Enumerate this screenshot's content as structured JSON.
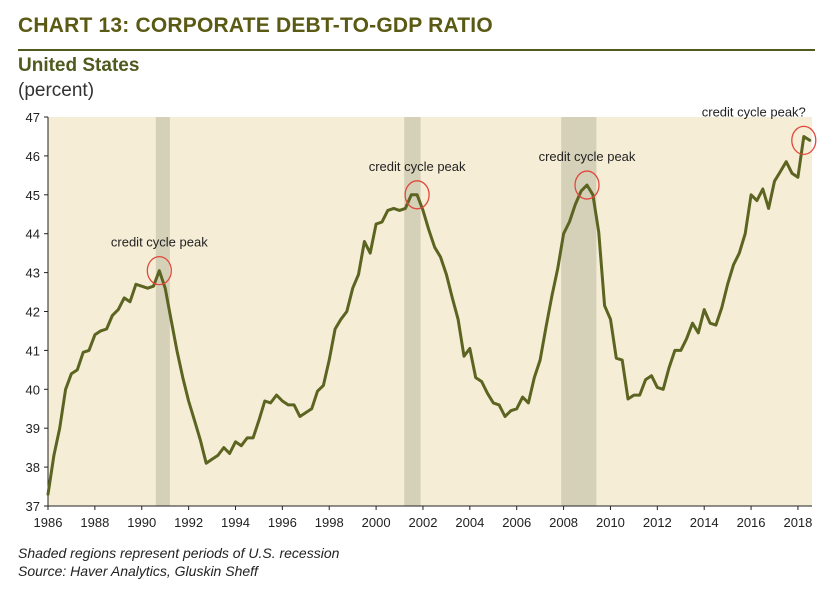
{
  "header": {
    "title": "CHART 13: CORPORATE DEBT-TO-GDP RATIO",
    "subtitle": "United States",
    "units": "(percent)"
  },
  "footnotes": [
    "Shaded regions represent periods of U.S. recession",
    "Source: Haver Analytics, Gluskin Sheff"
  ],
  "colors": {
    "line": "#5b6420",
    "plot_background": "#f6edd6",
    "recession_shade": "#d5d0b8",
    "circle": "#e0483c",
    "title": "#5a5a14"
  },
  "chart_data": {
    "type": "line",
    "xlim": [
      1986,
      2018.6
    ],
    "ylim": [
      37,
      47
    ],
    "x_ticks": [
      1986,
      1988,
      1990,
      1992,
      1994,
      1996,
      1998,
      2000,
      2002,
      2004,
      2006,
      2008,
      2010,
      2012,
      2014,
      2016,
      2018
    ],
    "y_ticks": [
      37,
      38,
      39,
      40,
      41,
      42,
      43,
      44,
      45,
      46,
      47
    ],
    "grid": false,
    "recessions": [
      [
        1990.6,
        1991.2
      ],
      [
        2001.2,
        2001.9
      ],
      [
        2007.9,
        2009.4
      ]
    ],
    "annotations": [
      {
        "text": "credit cycle peak",
        "x": 1990.75,
        "y": 43.05
      },
      {
        "text": "credit cycle peak",
        "x": 2001.75,
        "y": 45.0
      },
      {
        "text": "credit cycle peak",
        "x": 2009.0,
        "y": 45.25
      },
      {
        "text": "credit cycle peak?",
        "x": 2018.25,
        "y": 46.4
      }
    ],
    "series": [
      {
        "x": [
          1986.0,
          1986.25,
          1986.5,
          1986.75,
          1987.0,
          1987.25,
          1987.5,
          1987.75,
          1988.0,
          1988.25,
          1988.5,
          1988.75,
          1989.0,
          1989.25,
          1989.5,
          1989.75,
          1990.0,
          1990.25,
          1990.5,
          1990.75,
          1991.0,
          1991.25,
          1991.5,
          1991.75,
          1992.0,
          1992.25,
          1992.5,
          1992.75,
          1993.0,
          1993.25,
          1993.5,
          1993.75,
          1994.0,
          1994.25,
          1994.5,
          1994.75,
          1995.0,
          1995.25,
          1995.5,
          1995.75,
          1996.0,
          1996.25,
          1996.5,
          1996.75,
          1997.0,
          1997.25,
          1997.5,
          1997.75,
          1998.0,
          1998.25,
          1998.5,
          1998.75,
          1999.0,
          1999.25,
          1999.5,
          1999.75,
          2000.0,
          2000.25,
          2000.5,
          2000.75,
          2001.0,
          2001.25,
          2001.5,
          2001.75,
          2002.0,
          2002.25,
          2002.5,
          2002.75,
          2003.0,
          2003.25,
          2003.5,
          2003.75,
          2004.0,
          2004.25,
          2004.5,
          2004.75,
          2005.0,
          2005.25,
          2005.5,
          2005.75,
          2006.0,
          2006.25,
          2006.5,
          2006.75,
          2007.0,
          2007.25,
          2007.5,
          2007.75,
          2008.0,
          2008.25,
          2008.5,
          2008.75,
          2009.0,
          2009.25,
          2009.5,
          2009.75,
          2010.0,
          2010.25,
          2010.5,
          2010.75,
          2011.0,
          2011.25,
          2011.5,
          2011.75,
          2012.0,
          2012.25,
          2012.5,
          2012.75,
          2013.0,
          2013.25,
          2013.5,
          2013.75,
          2014.0,
          2014.25,
          2014.5,
          2014.75,
          2015.0,
          2015.25,
          2015.5,
          2015.75,
          2016.0,
          2016.25,
          2016.5,
          2016.75,
          2017.0,
          2017.25,
          2017.5,
          2017.75,
          2018.0,
          2018.25,
          2018.5
        ],
        "y": [
          37.3,
          38.3,
          39.0,
          40.0,
          40.4,
          40.5,
          40.95,
          41.0,
          41.4,
          41.5,
          41.55,
          41.9,
          42.05,
          42.35,
          42.25,
          42.7,
          42.65,
          42.6,
          42.65,
          43.05,
          42.6,
          41.8,
          41.0,
          40.3,
          39.7,
          39.2,
          38.7,
          38.1,
          38.2,
          38.3,
          38.5,
          38.35,
          38.65,
          38.55,
          38.75,
          38.75,
          39.2,
          39.7,
          39.65,
          39.85,
          39.7,
          39.6,
          39.6,
          39.3,
          39.4,
          39.5,
          39.95,
          40.1,
          40.75,
          41.55,
          41.8,
          42.0,
          42.6,
          42.95,
          43.8,
          43.5,
          44.25,
          44.3,
          44.6,
          44.65,
          44.6,
          44.65,
          45.0,
          45.0,
          44.6,
          44.1,
          43.65,
          43.4,
          42.95,
          42.35,
          41.8,
          40.85,
          41.05,
          40.3,
          40.2,
          39.9,
          39.65,
          39.6,
          39.3,
          39.45,
          39.5,
          39.8,
          39.65,
          40.3,
          40.75,
          41.6,
          42.4,
          43.1,
          44.0,
          44.3,
          44.75,
          45.1,
          45.25,
          45.0,
          44.05,
          42.15,
          41.8,
          40.8,
          40.75,
          39.75,
          39.85,
          39.85,
          40.25,
          40.35,
          40.05,
          40.0,
          40.55,
          41.0,
          41.0,
          41.3,
          41.7,
          41.45,
          42.05,
          41.7,
          41.65,
          42.1,
          42.7,
          43.2,
          43.5,
          44.0,
          45.0,
          44.85,
          45.15,
          44.65,
          45.35,
          45.6,
          45.85,
          45.55,
          45.45,
          46.5,
          46.4
        ]
      }
    ]
  }
}
